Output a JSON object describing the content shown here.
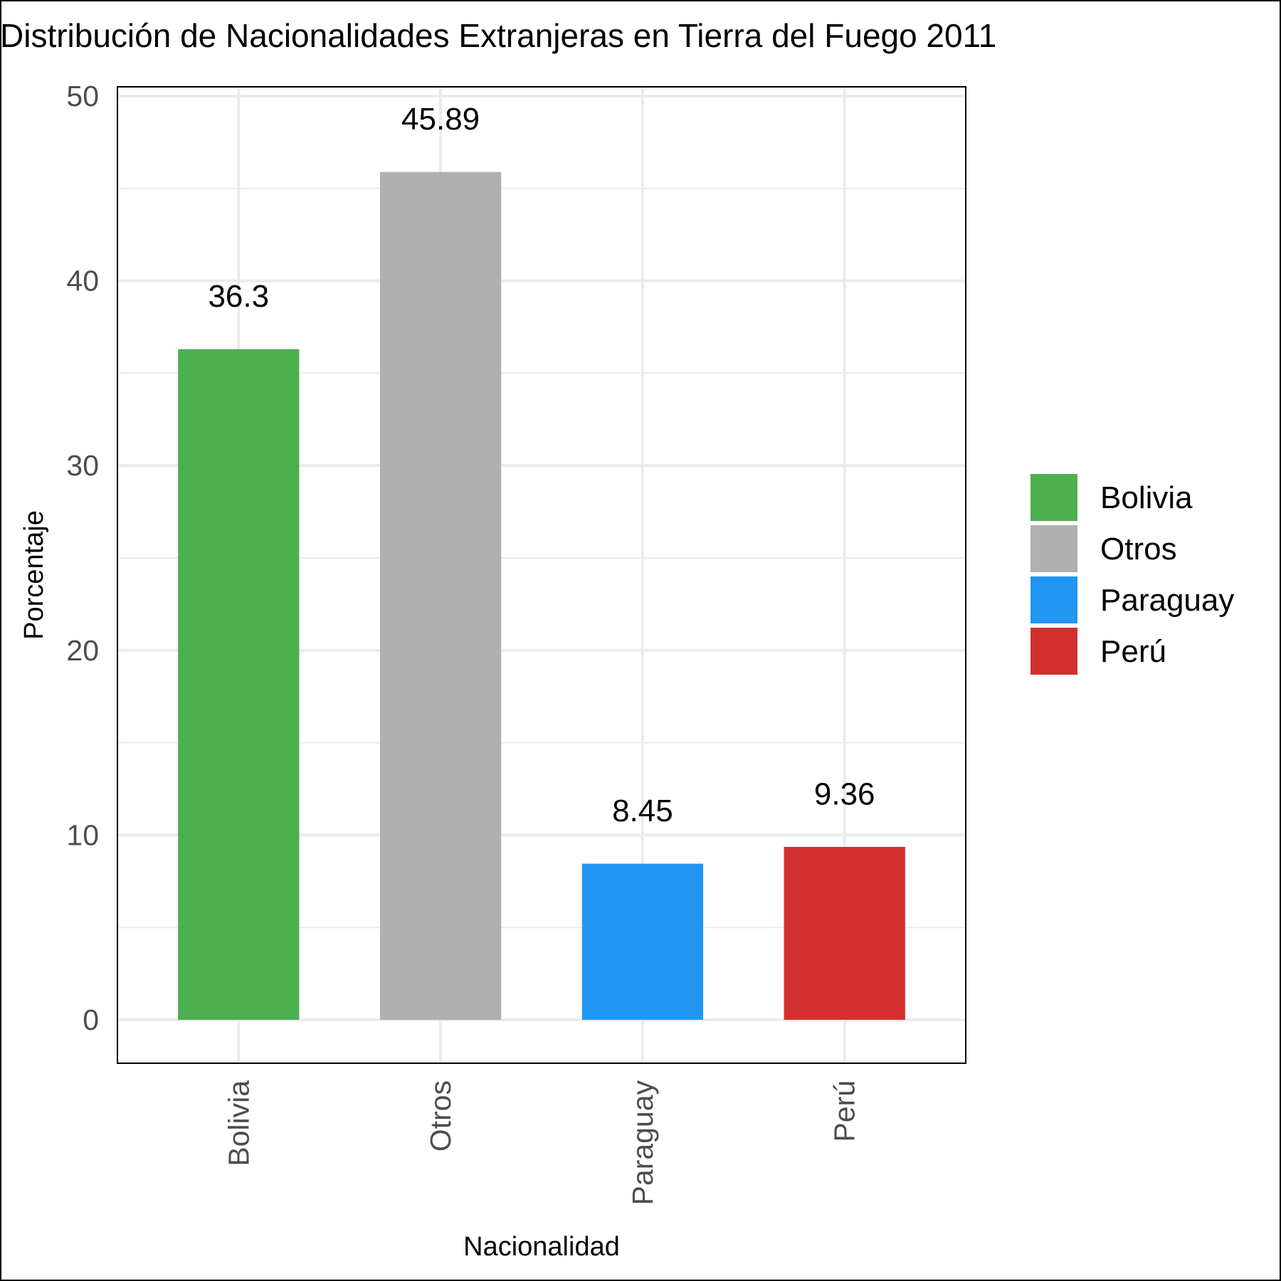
{
  "chart_data": {
    "type": "bar",
    "title": "Distribución de Nacionalidades Extranjeras en Tierra del Fuego 2011",
    "xlabel": "Nacionalidad",
    "ylabel": "Porcentaje",
    "categories": [
      "Bolivia",
      "Otros",
      "Paraguay",
      "Perú"
    ],
    "values": [
      36.3,
      45.89,
      8.45,
      9.36
    ],
    "data_labels": [
      "36.3",
      "45.89",
      "8.45",
      "9.36"
    ],
    "colors": [
      "#4caf50",
      "#b0b0b0",
      "#2196f3",
      "#d32f2f"
    ],
    "ylim": [
      -2.35,
      50.5
    ],
    "yticks": [
      0,
      10,
      20,
      30,
      40,
      50
    ],
    "grid": true,
    "legend": {
      "position": "right",
      "entries": [
        "Bolivia",
        "Otros",
        "Paraguay",
        "Perú"
      ]
    }
  }
}
